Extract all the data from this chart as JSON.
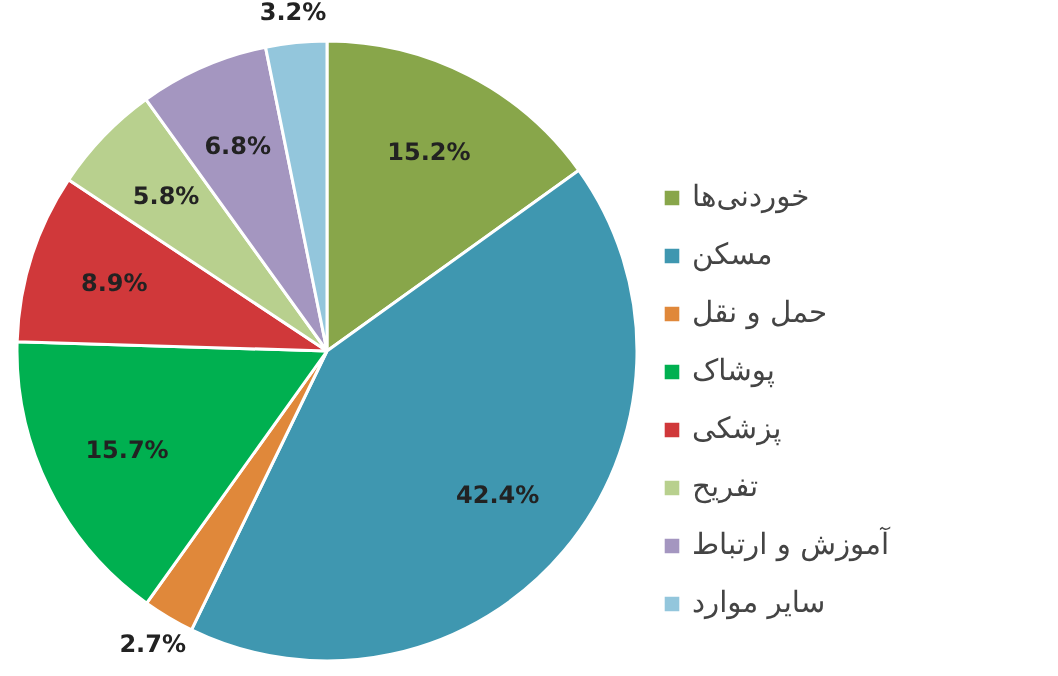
{
  "chart_data": {
    "type": "pie",
    "categories": [
      "خوردنی‌ها",
      "مسکن",
      "حمل و نقل",
      "پوشاک",
      "پزشکی",
      "تفریح",
      "آموزش و ارتباط",
      "سایر موارد"
    ],
    "values": [
      15.2,
      42.4,
      2.7,
      15.7,
      8.9,
      5.8,
      6.8,
      3.2
    ],
    "colors": [
      "#88a64a",
      "#3f97b0",
      "#e0883a",
      "#00b050",
      "#d0383a",
      "#b8d08e",
      "#a496c0",
      "#93c6dc"
    ],
    "value_labels": [
      "15.2%",
      "42.4%",
      "2.7%",
      "15.7%",
      "8.9%",
      "5.8%",
      "6.8%",
      "3.2%"
    ],
    "legend": "right"
  }
}
